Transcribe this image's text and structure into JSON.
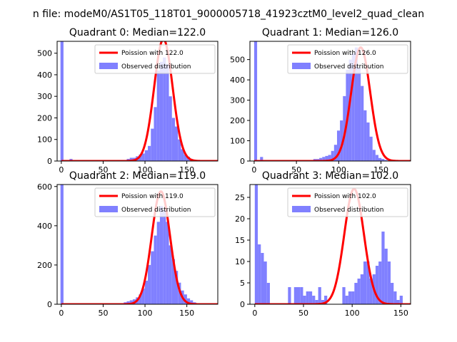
{
  "figure": {
    "suptitle": "n file: modeM0/AS1T05_118T01_9000005718_41923cztM0_level2_quad_clean"
  },
  "colors": {
    "poisson": "#ff0000",
    "observed": "#8080ff",
    "axes": "#000000",
    "background": "#ffffff"
  },
  "chart_data": [
    {
      "type": "bar",
      "title": "Quadrant 0: Median=122.0",
      "xlim": [
        -5,
        187
      ],
      "ylim": [
        0,
        555
      ],
      "xticks": [
        0,
        50,
        100,
        150
      ],
      "yticks": [
        0,
        100,
        200,
        300,
        400,
        500
      ],
      "bin_edges_start": -1,
      "bin_width": 3.6,
      "observed_values": [
        555,
        0,
        0,
        10,
        0,
        0,
        0,
        0,
        0,
        0,
        0,
        0,
        0,
        0,
        0,
        0,
        0,
        0,
        0,
        5,
        5,
        5,
        10,
        15,
        15,
        22,
        30,
        35,
        50,
        70,
        150,
        250,
        420,
        460,
        480,
        450,
        300,
        200,
        160,
        100,
        55,
        30,
        20,
        10,
        5,
        0,
        0,
        0,
        0,
        0,
        0,
        0,
        0
      ],
      "poisson_mean": 122.0,
      "poisson_peak": 565,
      "poisson_label": "Poission with 122.0",
      "observed_label": "Observed distribution"
    },
    {
      "type": "bar",
      "title": "Quadrant 1: Median=126.0",
      "xlim": [
        -5,
        185
      ],
      "ylim": [
        0,
        590
      ],
      "xticks": [
        0,
        50,
        100,
        150
      ],
      "yticks": [
        0,
        100,
        200,
        300,
        400,
        500
      ],
      "bin_edges_start": 0,
      "bin_width": 3.5,
      "observed_values": [
        590,
        0,
        20,
        0,
        0,
        0,
        0,
        0,
        0,
        0,
        0,
        0,
        0,
        0,
        0,
        0,
        0,
        0,
        5,
        5,
        10,
        10,
        15,
        20,
        25,
        30,
        50,
        80,
        150,
        200,
        320,
        450,
        500,
        530,
        560,
        460,
        370,
        250,
        190,
        120,
        55,
        30,
        15,
        10,
        5,
        0,
        0,
        0,
        0,
        0,
        0,
        0,
        0,
        0
      ],
      "poisson_mean": 126.0,
      "poisson_peak": 560,
      "poisson_label": "Poission with 126.0",
      "observed_label": "Observed distribution"
    },
    {
      "type": "bar",
      "title": "Quadrant 2: Median=119.0",
      "xlim": [
        -5,
        187
      ],
      "ylim": [
        0,
        610
      ],
      "xticks": [
        0,
        50,
        100,
        150
      ],
      "yticks": [
        0,
        200,
        400,
        600
      ],
      "bin_edges_start": -1,
      "bin_width": 3.6,
      "observed_values": [
        610,
        0,
        0,
        0,
        0,
        0,
        0,
        0,
        0,
        0,
        0,
        0,
        0,
        0,
        0,
        0,
        0,
        0,
        0,
        5,
        5,
        10,
        15,
        20,
        25,
        35,
        50,
        80,
        120,
        200,
        270,
        350,
        420,
        500,
        480,
        420,
        300,
        230,
        170,
        110,
        70,
        50,
        30,
        20,
        10,
        5,
        0,
        0,
        0,
        0,
        0,
        0
      ],
      "poisson_mean": 119.0,
      "poisson_peak": 575,
      "poisson_label": "Poission with 119.0",
      "observed_label": "Observed distribution"
    },
    {
      "type": "bar",
      "title": "Quadrant 3: Median=102.0",
      "xlim": [
        -5,
        160
      ],
      "ylim": [
        0,
        28
      ],
      "xticks": [
        0,
        50,
        100,
        150
      ],
      "yticks": [
        0,
        5,
        10,
        15,
        20,
        25
      ],
      "bin_edges_start": 0,
      "bin_width": 3.1,
      "observed_values": [
        28,
        14,
        12,
        10,
        5,
        0,
        0,
        0,
        0,
        0,
        0,
        4,
        0,
        4,
        4,
        4,
        2,
        3,
        3,
        2,
        1,
        4,
        1,
        2,
        0,
        0,
        0,
        0,
        0,
        4,
        2,
        3,
        3,
        5,
        6,
        7,
        10,
        10,
        6,
        7,
        9,
        10,
        17,
        13,
        10,
        5,
        3,
        1,
        2,
        0
      ],
      "poisson_mean": 102.0,
      "poisson_peak": 27,
      "poisson_label": "Poission with 102.0",
      "observed_label": "Observed distribution"
    }
  ]
}
